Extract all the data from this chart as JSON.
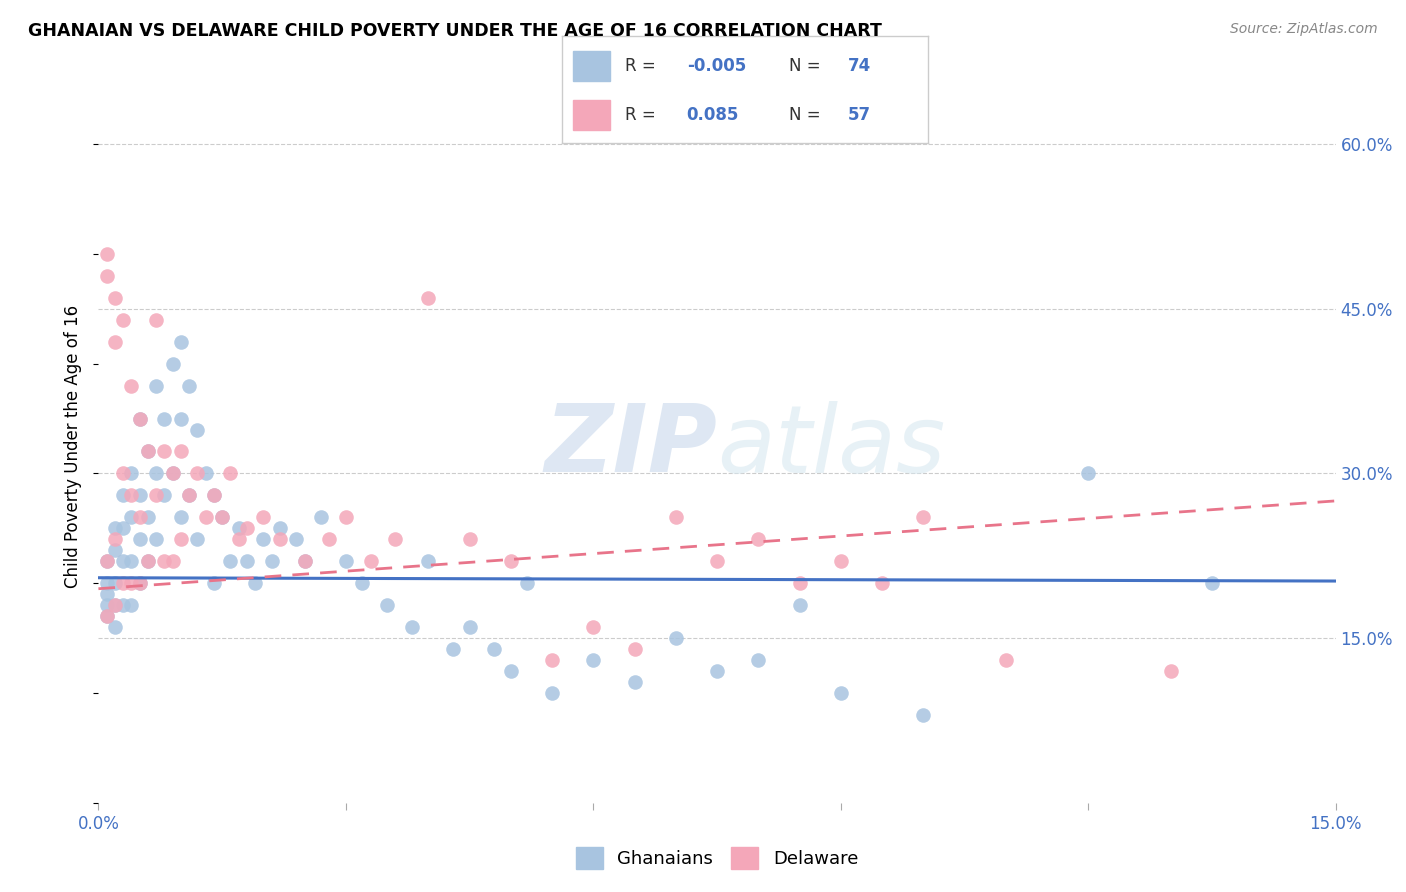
{
  "title": "GHANAIAN VS DELAWARE CHILD POVERTY UNDER THE AGE OF 16 CORRELATION CHART",
  "source": "Source: ZipAtlas.com",
  "ylabel": "Child Poverty Under the Age of 16",
  "xlim": [
    0.0,
    0.15
  ],
  "ylim": [
    0.0,
    0.65
  ],
  "xticks": [
    0.0,
    0.03,
    0.06,
    0.09,
    0.12,
    0.15
  ],
  "xtick_labels": [
    "0.0%",
    "",
    "",
    "",
    "",
    "15.0%"
  ],
  "ytick_vals_right": [
    0.15,
    0.3,
    0.45,
    0.6
  ],
  "ytick_labels_right": [
    "15.0%",
    "30.0%",
    "45.0%",
    "60.0%"
  ],
  "ghanaians_color": "#a8c4e0",
  "delaware_color": "#f4a7b9",
  "ghanaians_R": -0.005,
  "ghanaians_N": 74,
  "delaware_R": 0.085,
  "delaware_N": 57,
  "line_blue": "#4472c4",
  "line_pink": "#e8748a",
  "watermark_zip": "ZIP",
  "watermark_atlas": "atlas",
  "legend_label_1": "Ghanaians",
  "legend_label_2": "Delaware",
  "ghanaians_x": [
    0.001,
    0.001,
    0.001,
    0.001,
    0.001,
    0.002,
    0.002,
    0.002,
    0.002,
    0.002,
    0.003,
    0.003,
    0.003,
    0.003,
    0.004,
    0.004,
    0.004,
    0.004,
    0.005,
    0.005,
    0.005,
    0.005,
    0.006,
    0.006,
    0.006,
    0.007,
    0.007,
    0.007,
    0.008,
    0.008,
    0.009,
    0.009,
    0.01,
    0.01,
    0.01,
    0.011,
    0.011,
    0.012,
    0.012,
    0.013,
    0.014,
    0.014,
    0.015,
    0.016,
    0.017,
    0.018,
    0.019,
    0.02,
    0.021,
    0.022,
    0.024,
    0.025,
    0.027,
    0.03,
    0.032,
    0.035,
    0.038,
    0.04,
    0.043,
    0.045,
    0.048,
    0.05,
    0.052,
    0.055,
    0.06,
    0.065,
    0.07,
    0.075,
    0.08,
    0.085,
    0.09,
    0.1,
    0.12,
    0.135
  ],
  "ghanaians_y": [
    0.22,
    0.2,
    0.19,
    0.18,
    0.17,
    0.25,
    0.23,
    0.2,
    0.18,
    0.16,
    0.28,
    0.25,
    0.22,
    0.18,
    0.3,
    0.26,
    0.22,
    0.18,
    0.35,
    0.28,
    0.24,
    0.2,
    0.32,
    0.26,
    0.22,
    0.38,
    0.3,
    0.24,
    0.35,
    0.28,
    0.4,
    0.3,
    0.42,
    0.35,
    0.26,
    0.38,
    0.28,
    0.34,
    0.24,
    0.3,
    0.28,
    0.2,
    0.26,
    0.22,
    0.25,
    0.22,
    0.2,
    0.24,
    0.22,
    0.25,
    0.24,
    0.22,
    0.26,
    0.22,
    0.2,
    0.18,
    0.16,
    0.22,
    0.14,
    0.16,
    0.14,
    0.12,
    0.2,
    0.1,
    0.13,
    0.11,
    0.15,
    0.12,
    0.13,
    0.18,
    0.1,
    0.08,
    0.3,
    0.2
  ],
  "delaware_x": [
    0.001,
    0.001,
    0.001,
    0.001,
    0.002,
    0.002,
    0.002,
    0.002,
    0.003,
    0.003,
    0.003,
    0.004,
    0.004,
    0.004,
    0.005,
    0.005,
    0.005,
    0.006,
    0.006,
    0.007,
    0.007,
    0.008,
    0.008,
    0.009,
    0.009,
    0.01,
    0.01,
    0.011,
    0.012,
    0.013,
    0.014,
    0.015,
    0.016,
    0.017,
    0.018,
    0.02,
    0.022,
    0.025,
    0.028,
    0.03,
    0.033,
    0.036,
    0.04,
    0.045,
    0.05,
    0.055,
    0.06,
    0.065,
    0.07,
    0.075,
    0.08,
    0.085,
    0.09,
    0.095,
    0.1,
    0.11,
    0.13
  ],
  "delaware_y": [
    0.5,
    0.48,
    0.22,
    0.17,
    0.46,
    0.42,
    0.24,
    0.18,
    0.44,
    0.3,
    0.2,
    0.38,
    0.28,
    0.2,
    0.35,
    0.26,
    0.2,
    0.32,
    0.22,
    0.44,
    0.28,
    0.32,
    0.22,
    0.3,
    0.22,
    0.32,
    0.24,
    0.28,
    0.3,
    0.26,
    0.28,
    0.26,
    0.3,
    0.24,
    0.25,
    0.26,
    0.24,
    0.22,
    0.24,
    0.26,
    0.22,
    0.24,
    0.46,
    0.24,
    0.22,
    0.13,
    0.16,
    0.14,
    0.26,
    0.22,
    0.24,
    0.2,
    0.22,
    0.2,
    0.26,
    0.13,
    0.12
  ]
}
